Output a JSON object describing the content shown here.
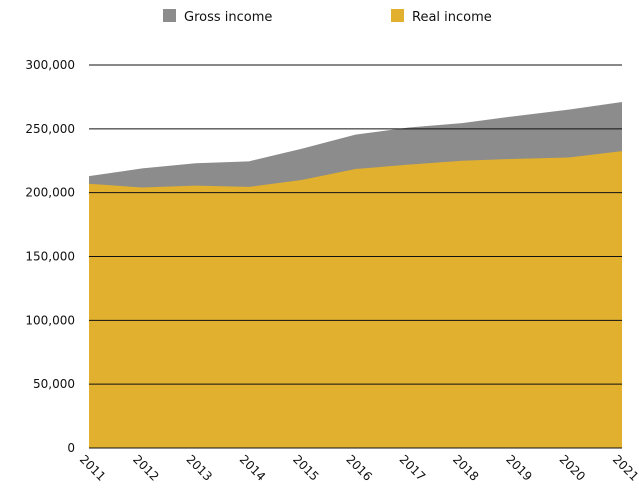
{
  "chart_data": {
    "type": "area",
    "title": "",
    "xlabel": "",
    "ylabel": "",
    "x": [
      "2011",
      "2012",
      "2013",
      "2014",
      "2015",
      "2016",
      "2017",
      "2018",
      "2019",
      "2020",
      "2021"
    ],
    "series": [
      {
        "name": "Gross income",
        "color": "#8c8c8c",
        "values": [
          213000,
          219000,
          223000,
          224500,
          234500,
          245500,
          251000,
          254500,
          260000,
          265000,
          271000
        ]
      },
      {
        "name": "Real income",
        "color": "#e0b02e",
        "values": [
          207000,
          204000,
          205500,
          204500,
          210000,
          218500,
          222000,
          225000,
          226500,
          227500,
          232500
        ]
      }
    ],
    "ylim": [
      0,
      300000
    ],
    "yticks": [
      0,
      50000,
      100000,
      150000,
      200000,
      250000,
      300000
    ],
    "ytick_labels": [
      "0",
      "50,000",
      "100,000",
      "150,000",
      "200,000",
      "250,000",
      "300,000"
    ],
    "grid": "horizontal",
    "legend_position": "top"
  }
}
